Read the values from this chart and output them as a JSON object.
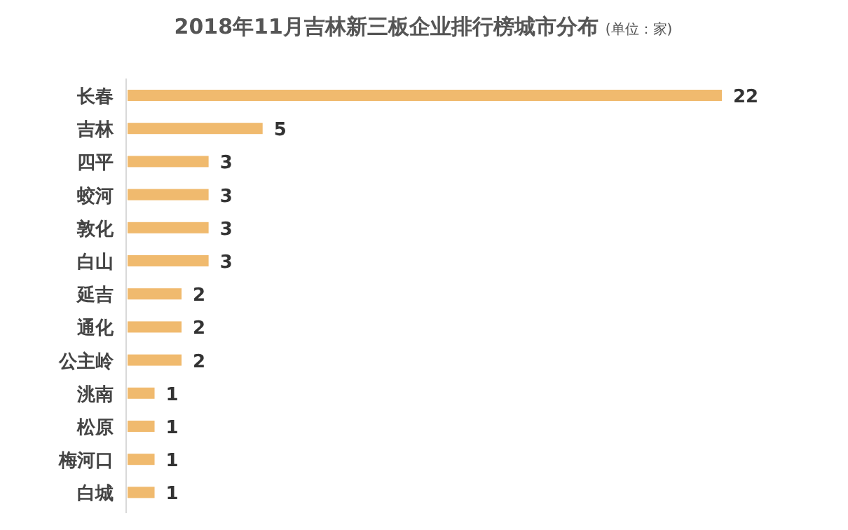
{
  "chart_data": {
    "type": "bar",
    "orientation": "horizontal",
    "title": "2018年11月吉林新三板企业排行榜城市分布",
    "subtitle": "(单位：家)",
    "categories": [
      "长春",
      "吉林",
      "四平",
      "蛟河",
      "敦化",
      "白山",
      "延吉",
      "通化",
      "公主岭",
      "洮南",
      "松原",
      "梅河口",
      "白城"
    ],
    "values": [
      22,
      5,
      3,
      3,
      3,
      3,
      2,
      2,
      2,
      1,
      1,
      1,
      1
    ],
    "color": "#f0ba6e",
    "data_labels": true
  }
}
